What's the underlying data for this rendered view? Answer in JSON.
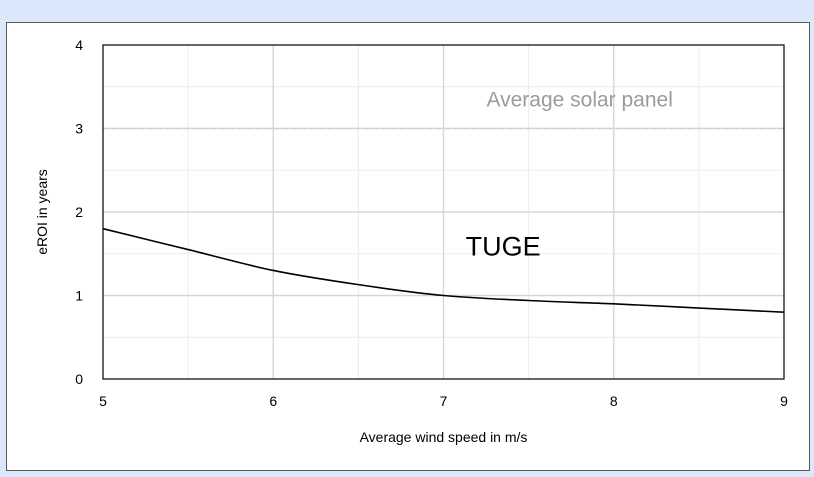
{
  "chart_data": {
    "type": "line",
    "title": "",
    "xlabel": "Average wind speed in m/s",
    "ylabel": "eROI in years",
    "xlim": [
      5,
      9
    ],
    "ylim": [
      0,
      4
    ],
    "x_ticks": [
      "5",
      "6",
      "7",
      "8",
      "9"
    ],
    "y_ticks": [
      "0",
      "1",
      "2",
      "3",
      "4"
    ],
    "grid": true,
    "minor_grid": true,
    "legend": "none",
    "series": [
      {
        "color": "#000000",
        "x": [
          5,
          5.5,
          6,
          6.5,
          7,
          7.5,
          8,
          8.5,
          9
        ],
        "y": [
          1.8,
          1.55,
          1.3,
          1.13,
          1.0,
          0.94,
          0.9,
          0.85,
          0.8
        ]
      }
    ],
    "reference_lines": [
      {
        "y": 3.0,
        "style": "dashed",
        "color": "#d0d0d0"
      }
    ],
    "annotations": [
      {
        "text": "Average solar panel",
        "x": 7.8,
        "y": 3.35,
        "color": "#9b9b9b"
      },
      {
        "text": "TUGE",
        "x": 7.35,
        "y": 1.6,
        "color": "#000000"
      }
    ]
  }
}
